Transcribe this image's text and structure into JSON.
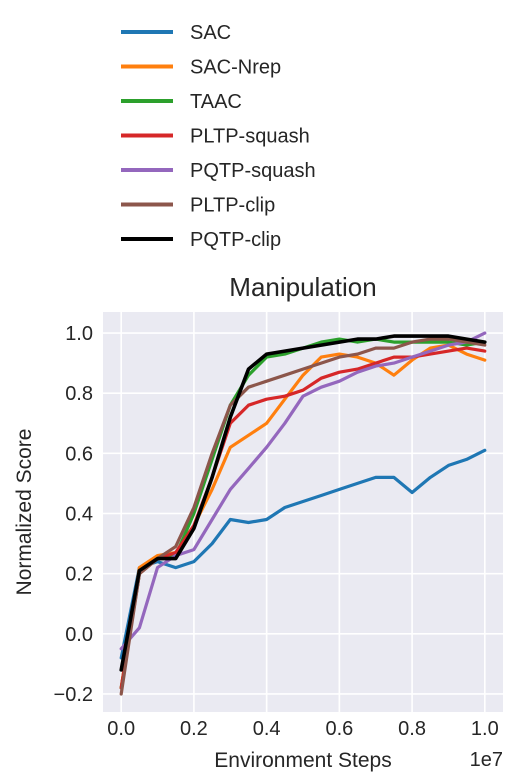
{
  "chart_data": {
    "type": "line",
    "title": "Manipulation",
    "xlabel": "Environment Steps",
    "ylabel": "Normalized Score",
    "x_offset_label": "1e7",
    "xlim": [
      -0.05,
      1.05
    ],
    "ylim": [
      -0.26,
      1.07
    ],
    "xticks": [
      0.0,
      0.2,
      0.4,
      0.6,
      0.8,
      1.0
    ],
    "xtick_labels": [
      "0.0",
      "0.2",
      "0.4",
      "0.6",
      "0.8",
      "1.0"
    ],
    "yticks": [
      -0.2,
      0.0,
      0.2,
      0.4,
      0.6,
      0.8,
      1.0
    ],
    "ytick_labels": [
      "−0.2",
      "0.0",
      "0.2",
      "0.4",
      "0.6",
      "0.8",
      "1.0"
    ],
    "grid": true,
    "legend_position": "above plot",
    "x": [
      0.0,
      0.05,
      0.1,
      0.15,
      0.2,
      0.25,
      0.3,
      0.35,
      0.4,
      0.45,
      0.5,
      0.55,
      0.6,
      0.65,
      0.7,
      0.75,
      0.8,
      0.85,
      0.9,
      0.95,
      1.0
    ],
    "series": [
      {
        "name": "SAC",
        "color": "#1f77b4",
        "values": [
          -0.08,
          0.22,
          0.24,
          0.22,
          0.24,
          0.3,
          0.38,
          0.37,
          0.38,
          0.42,
          0.44,
          0.46,
          0.48,
          0.5,
          0.52,
          0.52,
          0.47,
          0.52,
          0.56,
          0.58,
          0.61
        ]
      },
      {
        "name": "SAC-Nrep",
        "color": "#ff7f0e",
        "values": [
          -0.18,
          0.22,
          0.26,
          0.27,
          0.36,
          0.48,
          0.62,
          0.66,
          0.7,
          0.78,
          0.86,
          0.92,
          0.93,
          0.92,
          0.9,
          0.86,
          0.91,
          0.95,
          0.96,
          0.93,
          0.91
        ]
      },
      {
        "name": "TAAC",
        "color": "#2ca02c",
        "values": [
          -0.18,
          0.2,
          0.25,
          0.26,
          0.4,
          0.58,
          0.76,
          0.86,
          0.92,
          0.93,
          0.95,
          0.97,
          0.98,
          0.97,
          0.98,
          0.97,
          0.97,
          0.97,
          0.97,
          0.96,
          0.97
        ]
      },
      {
        "name": "PLTP-squash",
        "color": "#d62728",
        "values": [
          -0.18,
          0.2,
          0.25,
          0.27,
          0.36,
          0.52,
          0.7,
          0.76,
          0.78,
          0.79,
          0.81,
          0.85,
          0.87,
          0.88,
          0.9,
          0.92,
          0.92,
          0.93,
          0.94,
          0.95,
          0.94
        ]
      },
      {
        "name": "PQTP-squash",
        "color": "#9467bd",
        "values": [
          -0.05,
          0.02,
          0.22,
          0.26,
          0.28,
          0.38,
          0.48,
          0.55,
          0.62,
          0.7,
          0.79,
          0.82,
          0.84,
          0.87,
          0.89,
          0.9,
          0.92,
          0.94,
          0.96,
          0.97,
          1.0
        ]
      },
      {
        "name": "PLTP-clip",
        "color": "#8c564b",
        "values": [
          -0.2,
          0.2,
          0.25,
          0.29,
          0.42,
          0.6,
          0.76,
          0.82,
          0.84,
          0.86,
          0.88,
          0.9,
          0.92,
          0.93,
          0.95,
          0.95,
          0.97,
          0.98,
          0.98,
          0.97,
          0.96
        ]
      },
      {
        "name": "PQTP-clip",
        "color": "#000000",
        "values": [
          -0.12,
          0.21,
          0.25,
          0.25,
          0.35,
          0.52,
          0.72,
          0.88,
          0.93,
          0.94,
          0.95,
          0.96,
          0.97,
          0.98,
          0.98,
          0.99,
          0.99,
          0.99,
          0.99,
          0.98,
          0.97
        ]
      }
    ]
  }
}
